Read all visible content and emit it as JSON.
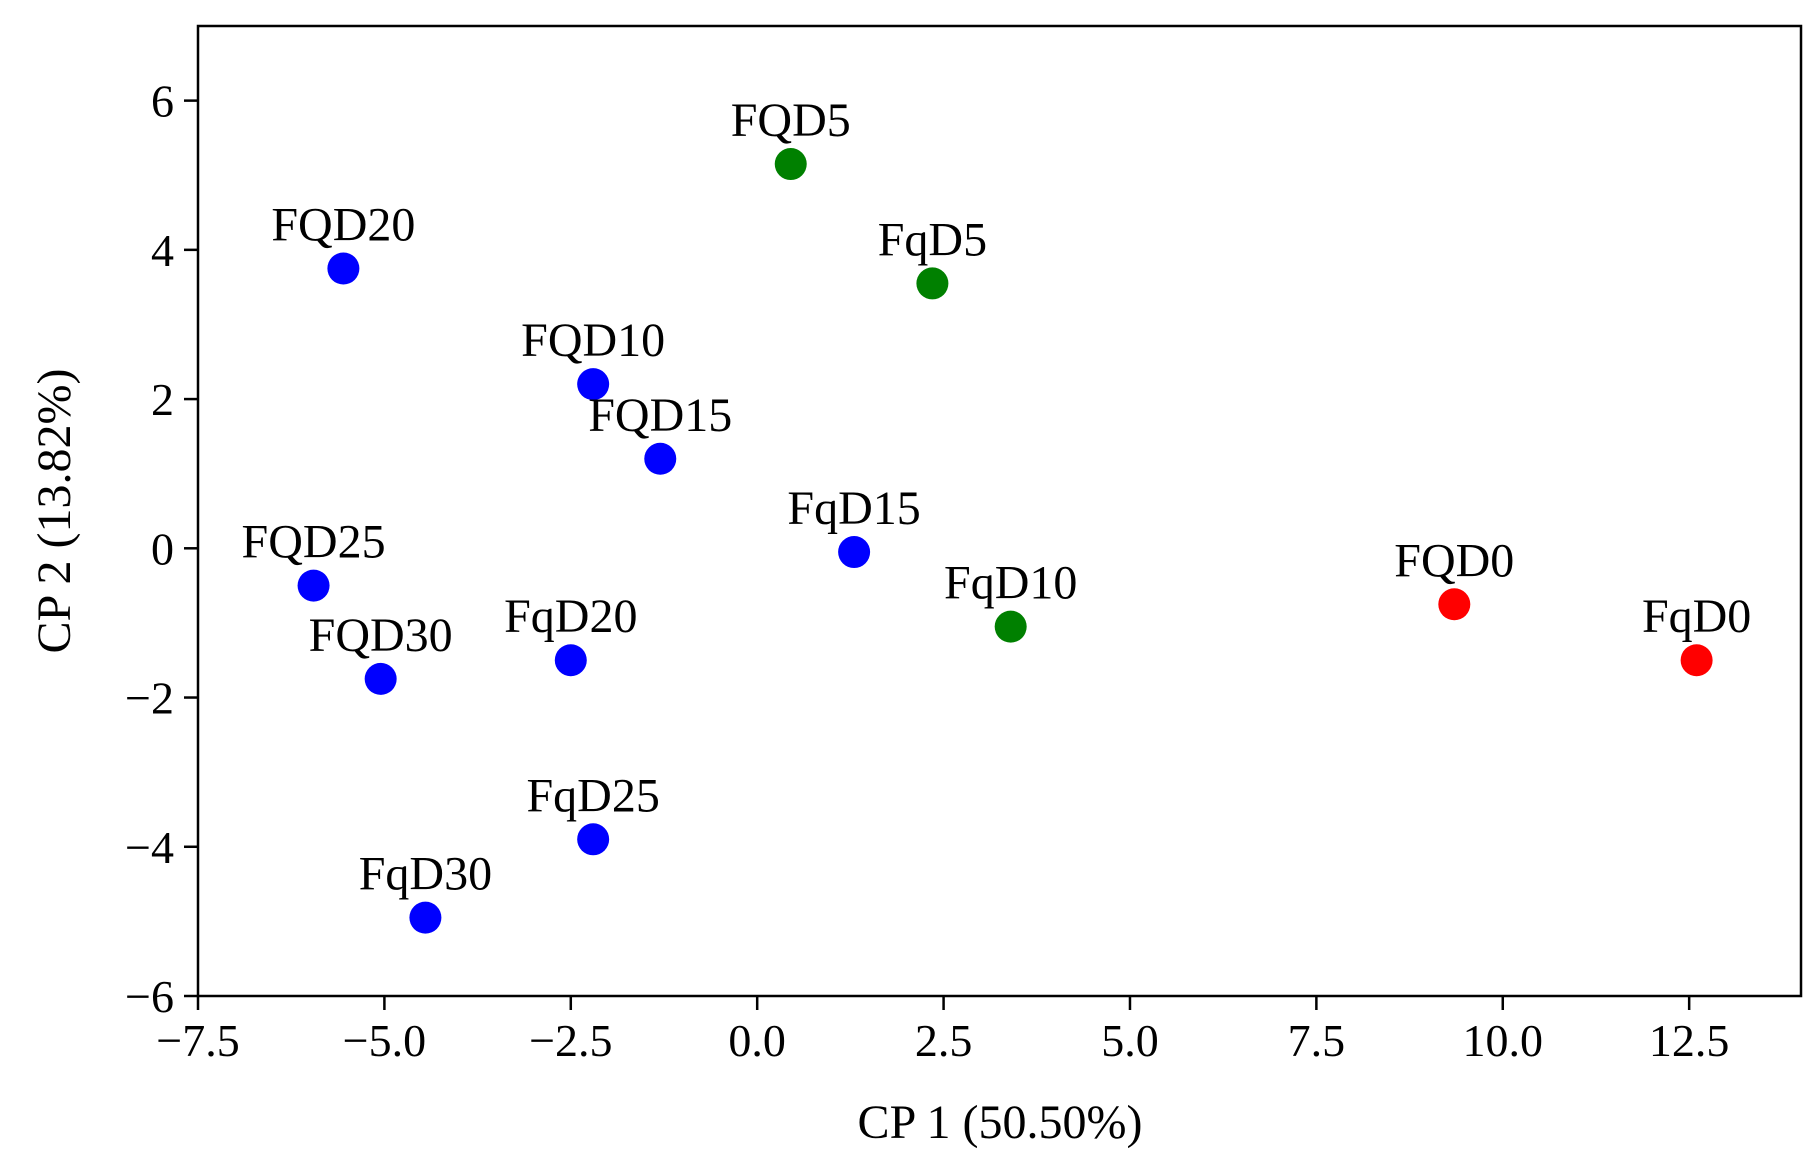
{
  "chart_data": {
    "type": "scatter",
    "title": "",
    "xlabel": "CP 1 (50.50%)",
    "ylabel": "CP 2 (13.82%)",
    "xlim": [
      -7.5,
      14.0
    ],
    "ylim": [
      -6.0,
      7.0
    ],
    "grid": false,
    "xticks": [
      -7.5,
      -5.0,
      -2.5,
      0.0,
      2.5,
      5.0,
      7.5,
      10.0,
      12.5
    ],
    "xtick_labels": [
      "−7.5",
      "−5.0",
      "−2.5",
      "0.0",
      "2.5",
      "5.0",
      "7.5",
      "10.0",
      "12.5"
    ],
    "yticks": [
      6,
      4,
      2,
      0,
      -2,
      -4,
      -6
    ],
    "ytick_labels": [
      "6",
      "4",
      "2",
      "0",
      "−2",
      "−4",
      "−6"
    ],
    "colors": {
      "blue": "#0000ff",
      "green": "#008000",
      "red": "#ff0000"
    },
    "points": [
      {
        "label": "FQD5",
        "x": 0.45,
        "y": 5.15,
        "color": "green"
      },
      {
        "label": "FqD5",
        "x": 2.35,
        "y": 3.55,
        "color": "green"
      },
      {
        "label": "FQD20",
        "x": -5.55,
        "y": 3.75,
        "color": "blue"
      },
      {
        "label": "FQD10",
        "x": -2.2,
        "y": 2.2,
        "color": "blue"
      },
      {
        "label": "FQD15",
        "x": -1.3,
        "y": 1.2,
        "color": "blue"
      },
      {
        "label": "FqD15",
        "x": 1.3,
        "y": -0.05,
        "color": "blue"
      },
      {
        "label": "FQD25",
        "x": -5.95,
        "y": -0.5,
        "color": "blue"
      },
      {
        "label": "FqD10",
        "x": 3.4,
        "y": -1.05,
        "color": "green"
      },
      {
        "label": "FQD0",
        "x": 9.35,
        "y": -0.75,
        "color": "red"
      },
      {
        "label": "FqD0",
        "x": 12.6,
        "y": -1.5,
        "color": "red"
      },
      {
        "label": "FqD20",
        "x": -2.5,
        "y": -1.5,
        "color": "blue"
      },
      {
        "label": "FQD30",
        "x": -5.05,
        "y": -1.75,
        "color": "blue"
      },
      {
        "label": "FqD25",
        "x": -2.2,
        "y": -3.9,
        "color": "blue"
      },
      {
        "label": "FqD30",
        "x": -4.45,
        "y": -4.95,
        "color": "blue"
      }
    ]
  }
}
